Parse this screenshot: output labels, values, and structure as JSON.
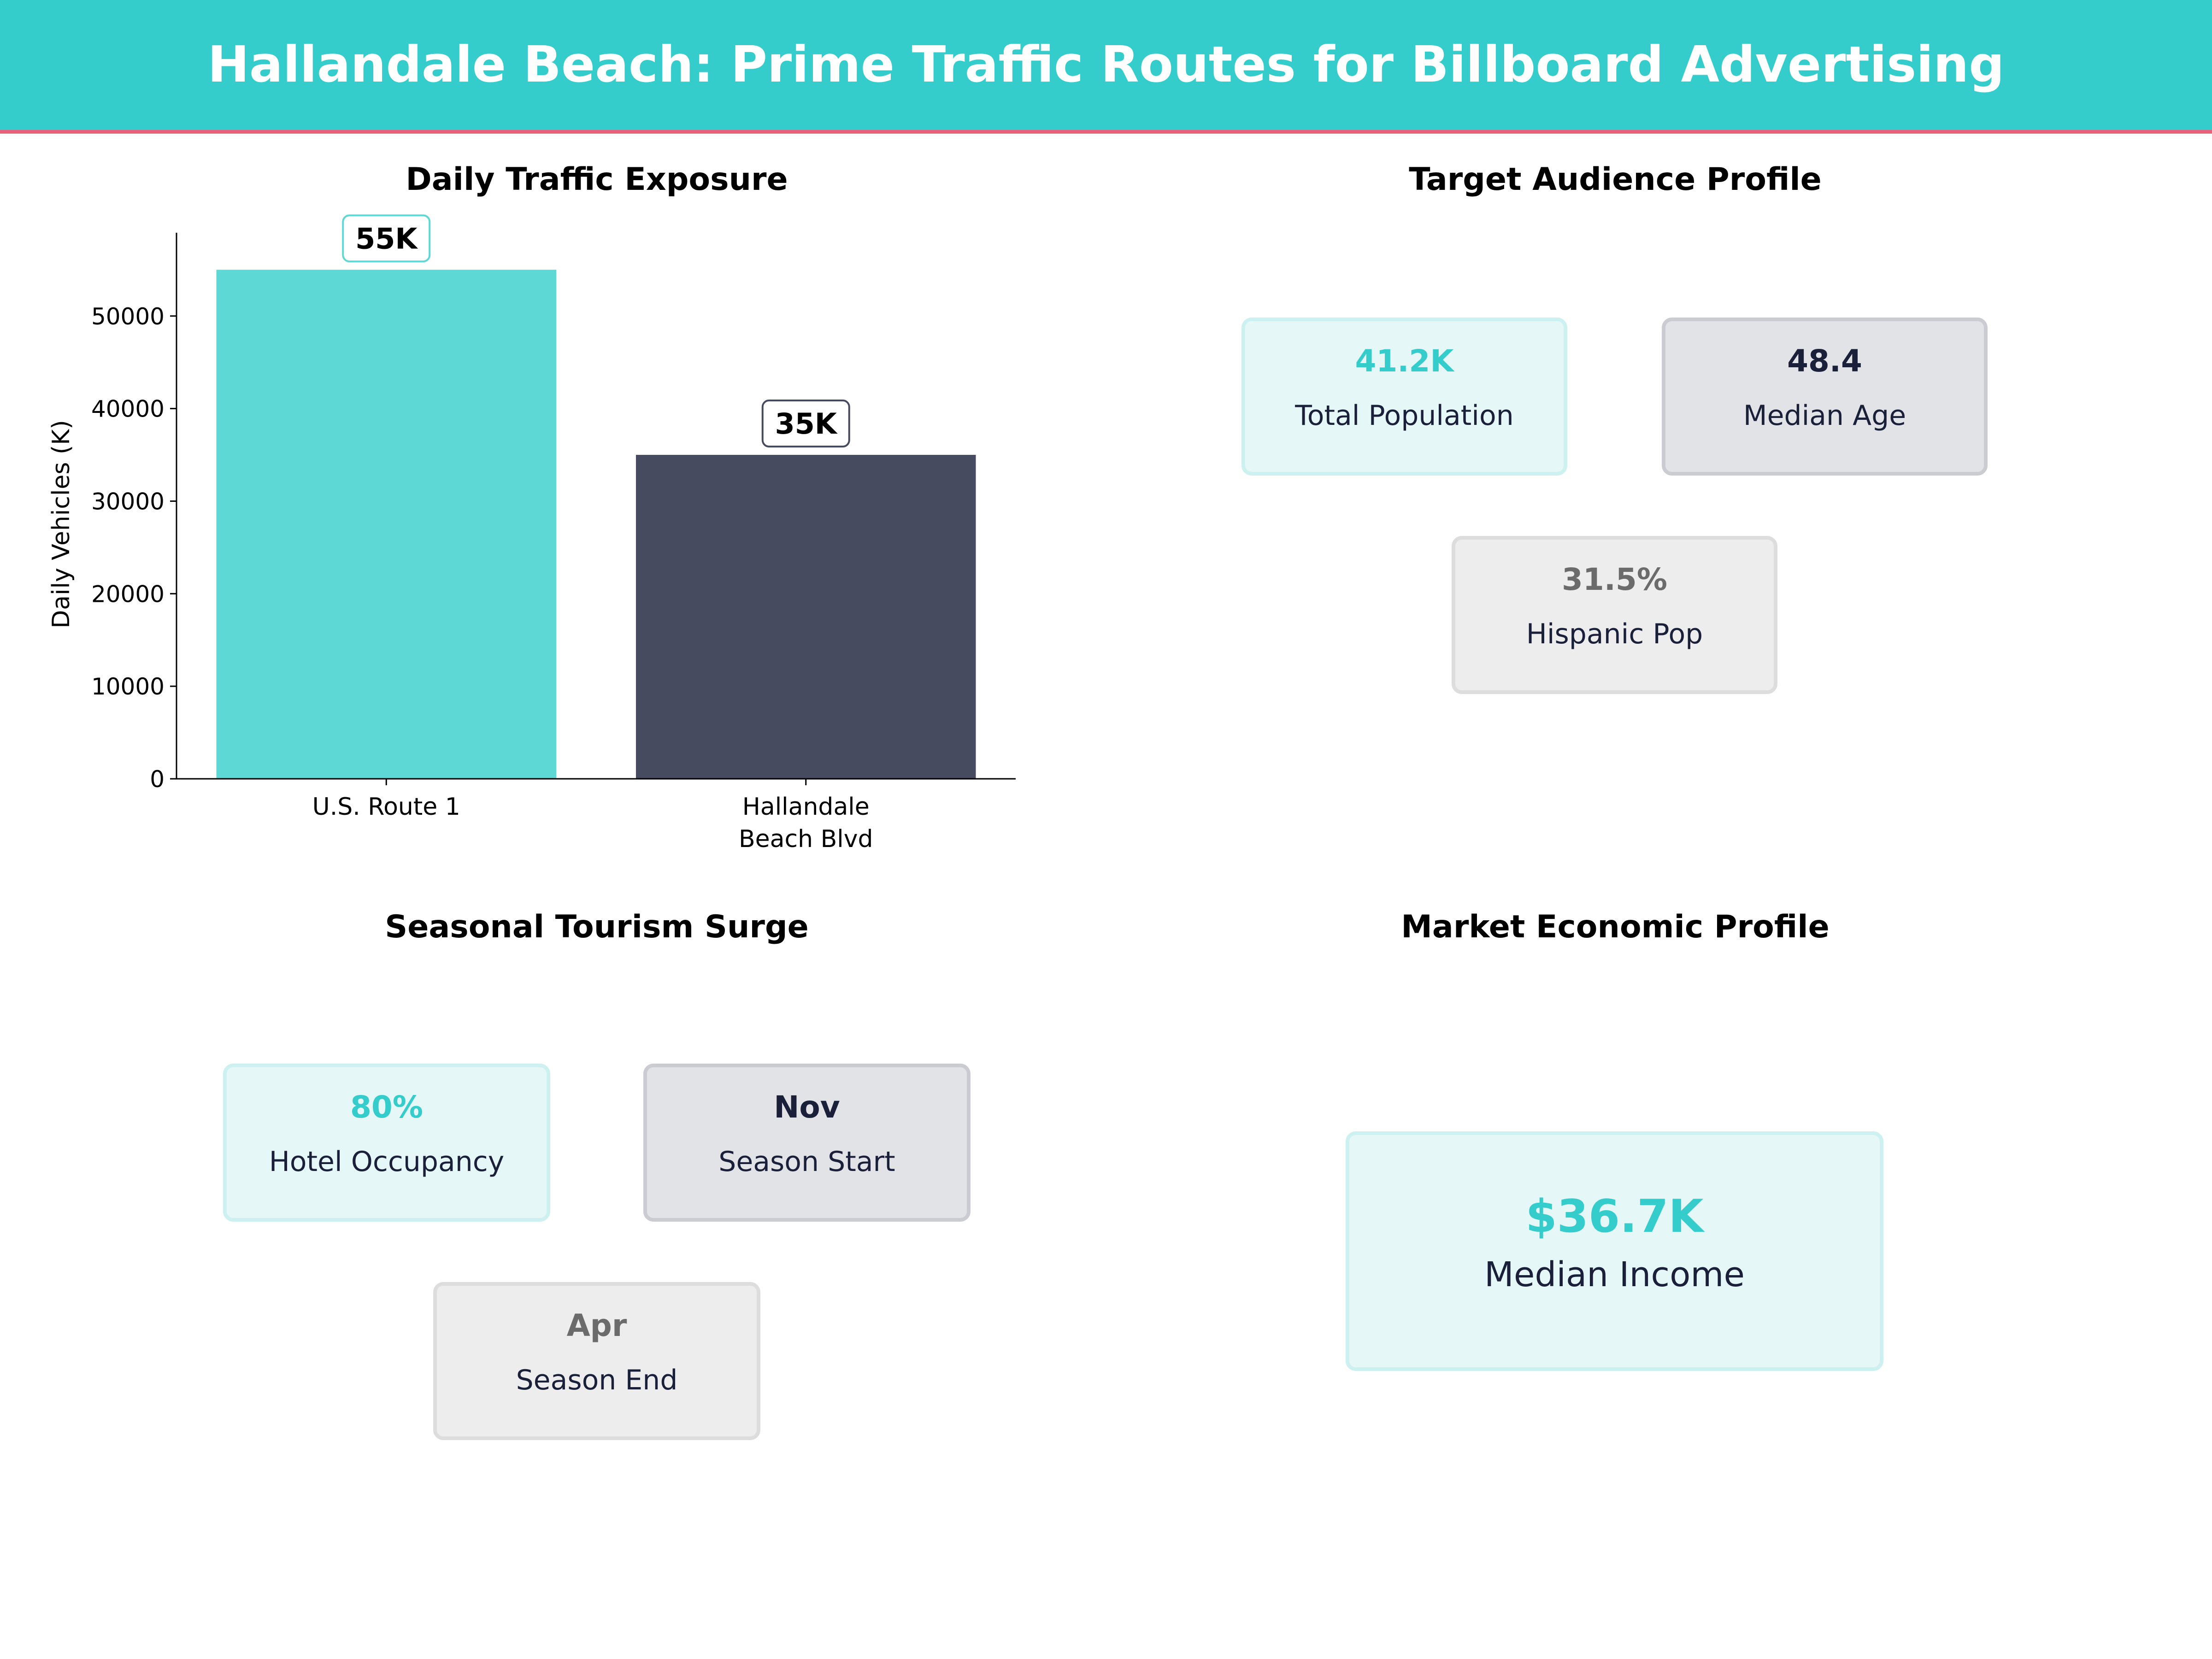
{
  "header": {
    "title": "Hallandale Beach: Prime Traffic Routes for Billboard Advertising"
  },
  "colors": {
    "header_bg": "#35CCCC",
    "accent_line": "#E8617A",
    "teal": "#5DD8D4",
    "navy": "#464B60"
  },
  "chart_data": {
    "type": "bar",
    "title": "Daily Traffic Exposure",
    "xlabel": "",
    "ylabel": "Daily Vehicles (K)",
    "categories": [
      "U.S. Route 1",
      "Hallandale\nBeach Blvd"
    ],
    "category_lines": [
      [
        "U.S. Route 1"
      ],
      [
        "Hallandale",
        "Beach Blvd"
      ]
    ],
    "values": [
      55000,
      35000
    ],
    "data_labels": [
      "55K",
      "35K"
    ],
    "bar_colors": [
      "#5DD8D4",
      "#464B60"
    ],
    "ylim": [
      0,
      59000
    ],
    "yticks": [
      0,
      10000,
      20000,
      30000,
      40000,
      50000
    ],
    "ytick_labels": [
      "0",
      "10000",
      "20000",
      "30000",
      "40000",
      "50000"
    ],
    "grid": false
  },
  "audience": {
    "title": "Target Audience Profile",
    "cards": [
      {
        "value": "41.2K",
        "label": "Total Population"
      },
      {
        "value": "48.4",
        "label": "Median Age"
      },
      {
        "value": "31.5%",
        "label": "Hispanic Pop"
      }
    ]
  },
  "tourism": {
    "title": "Seasonal Tourism Surge",
    "cards": [
      {
        "value": "80%",
        "label": "Hotel Occupancy"
      },
      {
        "value": "Nov",
        "label": "Season Start"
      },
      {
        "value": "Apr",
        "label": "Season End"
      }
    ]
  },
  "economy": {
    "title": "Market Economic Profile",
    "card": {
      "value": "$36.7K",
      "label": "Median Income"
    }
  }
}
